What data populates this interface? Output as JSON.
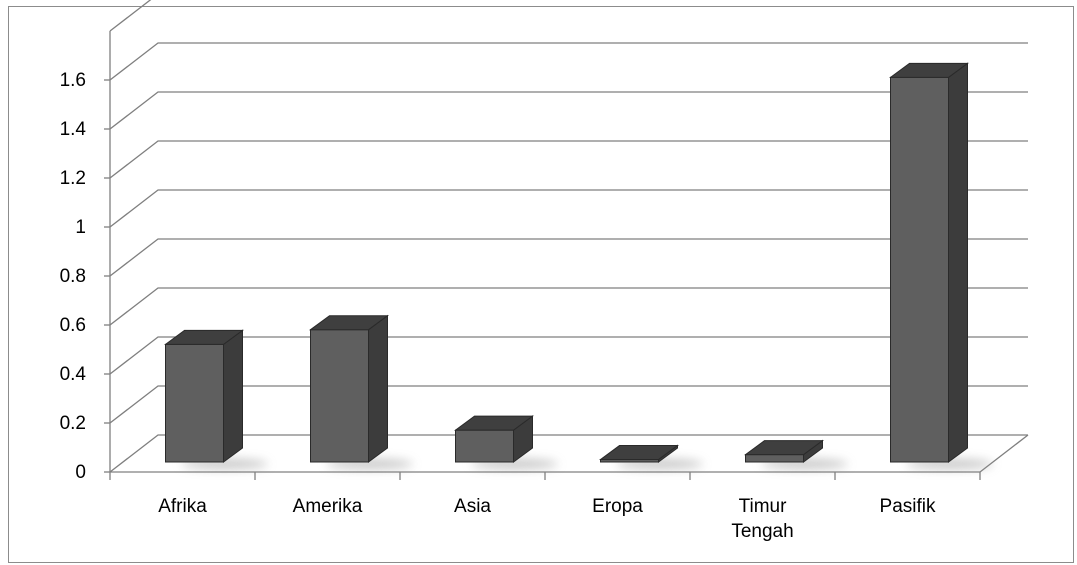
{
  "chart_data": {
    "type": "bar",
    "style": "3d-column",
    "title": "",
    "xlabel": "",
    "ylabel": "",
    "categories": [
      [
        "Afrika"
      ],
      [
        "Amerika"
      ],
      [
        "Asia"
      ],
      [
        "Eropa"
      ],
      [
        "Timur",
        "Tengah"
      ],
      [
        "Pasifik"
      ]
    ],
    "values": [
      0.48,
      0.54,
      0.13,
      0.01,
      0.03,
      1.57
    ],
    "ylim": [
      0,
      1.8
    ],
    "yticks": [
      "0",
      "0.2",
      "0.4",
      "0.6",
      "0.8",
      "1",
      "1.2",
      "1.4",
      "1.6"
    ],
    "grid": true,
    "legend": "none",
    "colors": {
      "bar_front": "#5f5f5f",
      "bar_side": "#3c3c3c",
      "bar_top": "#3f3f3f",
      "bar_edge": "#2a2a2a",
      "gridline": "#7f7f7f",
      "axis": "#808080"
    }
  }
}
